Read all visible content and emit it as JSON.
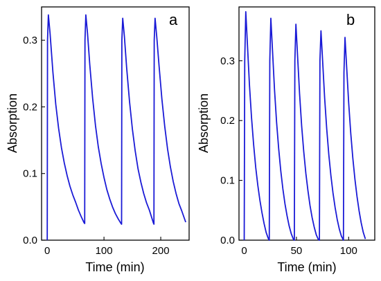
{
  "chart_data": [
    {
      "type": "line",
      "panel_label": "a",
      "title": "",
      "xlabel": "Time (min)",
      "ylabel": "Absorption",
      "xlim": [
        -10,
        250
      ],
      "ylim": [
        0,
        0.35
      ],
      "xticks": [
        0,
        100,
        200
      ],
      "yticks": [
        0.0,
        0.1,
        0.2,
        0.3
      ],
      "ytick_labels": [
        "0.0",
        "0.1",
        "0.2",
        "0.3"
      ],
      "grid": false,
      "color": "#1a1ad6",
      "series": [
        {
          "x": [
            0,
            0.5,
            2,
            5,
            10,
            15,
            20,
            25,
            30,
            35,
            40,
            45,
            50,
            55,
            60,
            65,
            66,
            66.5,
            68,
            71,
            75,
            80,
            85,
            90,
            95,
            100,
            105,
            110,
            115,
            120,
            125,
            130,
            131,
            131.5,
            133,
            136,
            140,
            145,
            150,
            155,
            160,
            165,
            170,
            175,
            180,
            187,
            188,
            188.5,
            190,
            193,
            197,
            202,
            207,
            212,
            217,
            222,
            227,
            232,
            237,
            244
          ],
          "y": [
            0.0,
            0.3,
            0.338,
            0.31,
            0.252,
            0.204,
            0.168,
            0.139,
            0.116,
            0.097,
            0.081,
            0.068,
            0.057,
            0.045,
            0.035,
            0.026,
            0.025,
            0.3,
            0.338,
            0.31,
            0.263,
            0.213,
            0.172,
            0.14,
            0.115,
            0.094,
            0.076,
            0.062,
            0.05,
            0.04,
            0.032,
            0.025,
            0.024,
            0.3,
            0.333,
            0.305,
            0.258,
            0.208,
            0.167,
            0.134,
            0.107,
            0.087,
            0.07,
            0.056,
            0.045,
            0.026,
            0.024,
            0.3,
            0.333,
            0.305,
            0.262,
            0.212,
            0.171,
            0.137,
            0.11,
            0.088,
            0.07,
            0.055,
            0.044,
            0.027
          ]
        }
      ]
    },
    {
      "type": "line",
      "panel_label": "b",
      "title": "",
      "xlabel": "Time (min)",
      "ylabel": "Absorption",
      "xlim": [
        -5,
        125
      ],
      "ylim": [
        0,
        0.39
      ],
      "xticks": [
        0,
        50,
        100
      ],
      "yticks": [
        0.0,
        0.1,
        0.2,
        0.3
      ],
      "ytick_labels": [
        "0.0",
        "0.1",
        "0.2",
        "0.3"
      ],
      "grid": false,
      "color": "#1a1ad6",
      "series": [
        {
          "x": [
            0,
            0.5,
            1.5,
            3,
            5,
            7,
            9,
            11,
            13,
            15,
            17,
            19,
            21,
            23,
            24,
            24.5,
            25.5,
            27,
            29,
            31,
            33,
            35,
            37,
            39,
            41,
            43,
            45,
            47,
            48,
            48.5,
            49.5,
            51,
            53,
            55,
            57,
            59,
            61,
            63,
            65,
            67,
            69,
            71,
            72,
            72.5,
            73.5,
            75,
            77,
            79,
            81,
            83,
            85,
            87,
            89,
            91,
            93,
            95,
            95.5,
            96.5,
            98,
            100,
            102,
            104,
            106,
            108,
            110,
            112,
            114,
            116
          ],
          "y": [
            0.0,
            0.3,
            0.382,
            0.33,
            0.26,
            0.205,
            0.16,
            0.122,
            0.092,
            0.067,
            0.046,
            0.028,
            0.013,
            0.003,
            0.0,
            0.3,
            0.371,
            0.32,
            0.252,
            0.197,
            0.153,
            0.116,
            0.086,
            0.061,
            0.041,
            0.024,
            0.011,
            0.002,
            0.0,
            0.3,
            0.361,
            0.311,
            0.245,
            0.191,
            0.148,
            0.112,
            0.083,
            0.058,
            0.038,
            0.022,
            0.009,
            0.001,
            0.0,
            0.3,
            0.35,
            0.302,
            0.238,
            0.186,
            0.143,
            0.108,
            0.079,
            0.055,
            0.035,
            0.019,
            0.007,
            0.0,
            0.28,
            0.339,
            0.292,
            0.23,
            0.179,
            0.137,
            0.102,
            0.073,
            0.049,
            0.029,
            0.013,
            0.002
          ]
        }
      ]
    }
  ]
}
